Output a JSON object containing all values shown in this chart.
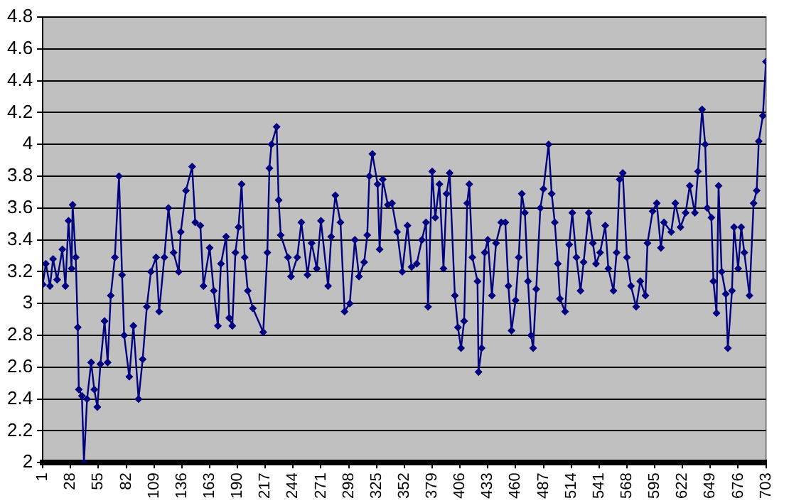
{
  "chart_data": {
    "type": "line",
    "x": [
      1,
      4,
      8,
      11,
      15,
      20,
      23,
      26,
      29,
      30,
      33,
      35,
      36,
      39,
      41,
      44,
      48,
      51,
      54,
      57,
      61,
      64,
      67,
      71,
      75,
      78,
      80,
      85,
      89,
      94,
      98,
      102,
      106,
      111,
      114,
      119,
      123,
      128,
      133,
      135,
      140,
      146,
      149,
      154,
      157,
      163,
      167,
      171,
      174,
      179,
      182,
      185,
      188,
      191,
      194,
      197,
      200,
      205,
      215,
      219,
      221,
      223,
      228,
      230,
      232,
      239,
      242,
      248,
      252,
      258,
      262,
      267,
      271,
      278,
      281,
      285,
      290,
      294,
      299,
      304,
      308,
      313,
      316,
      318,
      321,
      326,
      328,
      331,
      336,
      340,
      345,
      350,
      355,
      359,
      364,
      369,
      373,
      375,
      379,
      382,
      386,
      390,
      393,
      396,
      401,
      404,
      407,
      410,
      413,
      415,
      418,
      423,
      424,
      427,
      430,
      433,
      437,
      441,
      446,
      450,
      453,
      456,
      460,
      463,
      466,
      469,
      472,
      475,
      477,
      480,
      484,
      487,
      492,
      495,
      498,
      501,
      503,
      508,
      512,
      515,
      519,
      523,
      526,
      531,
      535,
      538,
      542,
      547,
      550,
      555,
      558,
      561,
      564,
      568,
      572,
      577,
      581,
      586,
      588,
      593,
      597,
      601,
      604,
      611,
      615,
      620,
      625,
      629,
      634,
      637,
      641,
      644,
      646,
      650,
      652,
      655,
      657,
      660,
      664,
      666,
      670,
      672,
      676,
      679,
      682,
      687,
      691,
      694,
      696,
      700,
      703
    ],
    "series": [
      {
        "color": "#000080",
        "values": [
          3.12,
          3.25,
          3.11,
          3.28,
          3.15,
          3.34,
          3.11,
          3.52,
          3.22,
          3.62,
          3.29,
          2.85,
          2.46,
          2.42,
          2.0,
          2.4,
          2.63,
          2.46,
          2.35,
          2.62,
          2.89,
          2.63,
          3.05,
          3.29,
          3.8,
          3.18,
          2.8,
          2.54,
          2.86,
          2.4,
          2.65,
          2.98,
          3.2,
          3.29,
          2.95,
          3.29,
          3.6,
          3.32,
          3.2,
          3.45,
          3.71,
          3.86,
          3.51,
          3.49,
          3.11,
          3.35,
          3.08,
          2.86,
          3.25,
          3.42,
          2.91,
          2.86,
          3.32,
          3.48,
          3.75,
          3.29,
          3.08,
          2.97,
          2.82,
          3.32,
          3.85,
          4.0,
          4.11,
          3.65,
          3.43,
          3.29,
          3.17,
          3.29,
          3.51,
          3.18,
          3.38,
          3.22,
          3.52,
          3.11,
          3.42,
          3.68,
          3.51,
          2.95,
          3.0,
          3.4,
          3.17,
          3.26,
          3.43,
          3.8,
          3.94,
          3.75,
          3.34,
          3.78,
          3.62,
          3.63,
          3.45,
          3.2,
          3.49,
          3.23,
          3.25,
          3.4,
          3.51,
          2.98,
          3.83,
          3.54,
          3.75,
          3.22,
          3.69,
          3.82,
          3.05,
          2.85,
          2.72,
          2.89,
          3.63,
          3.75,
          3.29,
          3.14,
          2.57,
          2.72,
          3.32,
          3.4,
          3.05,
          3.38,
          3.51,
          3.51,
          3.11,
          2.83,
          3.02,
          3.29,
          3.69,
          3.57,
          3.14,
          2.8,
          2.72,
          3.09,
          3.6,
          3.72,
          4.0,
          3.69,
          3.51,
          3.25,
          3.03,
          2.95,
          3.37,
          3.57,
          3.29,
          3.08,
          3.26,
          3.57,
          3.38,
          3.25,
          3.32,
          3.49,
          3.22,
          3.08,
          3.32,
          3.78,
          3.82,
          3.29,
          3.11,
          2.98,
          3.14,
          3.05,
          3.38,
          3.58,
          3.63,
          3.35,
          3.51,
          3.45,
          3.63,
          3.48,
          3.57,
          3.74,
          3.57,
          3.83,
          4.22,
          4.0,
          3.6,
          3.54,
          3.14,
          2.94,
          3.74,
          3.2,
          3.06,
          2.72,
          3.08,
          3.48,
          3.22,
          3.48,
          3.32,
          3.05,
          3.63,
          3.71,
          4.02,
          4.18,
          4.52
        ]
      }
    ],
    "xlim": [
      1,
      703
    ],
    "xticks": [
      1,
      28,
      55,
      82,
      109,
      136,
      163,
      190,
      217,
      244,
      271,
      298,
      325,
      352,
      379,
      406,
      433,
      460,
      487,
      514,
      541,
      568,
      595,
      622,
      649,
      676,
      703
    ],
    "ylim": [
      2,
      4.8
    ],
    "yticks": [
      2,
      2.2,
      2.4,
      2.6,
      2.8,
      3,
      3.2,
      3.4,
      3.6,
      3.8,
      4,
      4.2,
      4.4,
      4.6,
      4.8
    ],
    "grid": "y",
    "marker": "diamond"
  }
}
